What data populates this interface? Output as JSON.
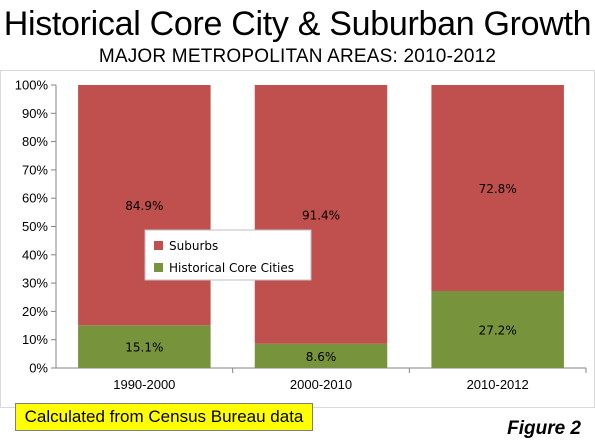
{
  "header": {
    "title": "Historical Core City & Suburban Growth",
    "subtitle": "MAJOR METROPOLITAN AREAS: 2010-2012"
  },
  "footer": {
    "note": "Calculated from Census Bureau data",
    "figure_label": "Figure 2"
  },
  "chart_data": {
    "type": "bar",
    "stacked": true,
    "categories": [
      "1990-2000",
      "2000-2010",
      "2010-2012"
    ],
    "series": [
      {
        "name": "Historical Core Cities",
        "values": [
          15.1,
          8.6,
          27.2
        ],
        "labels": [
          "15.1%",
          "8.6%",
          "27.2%"
        ],
        "color": "#77933c"
      },
      {
        "name": "Suburbs",
        "values": [
          84.9,
          91.4,
          72.8
        ],
        "labels": [
          "84.9%",
          "91.4%",
          "72.8%"
        ],
        "color": "#c0504d"
      }
    ],
    "ylim": [
      0,
      100
    ],
    "yticks": [
      "0%",
      "10%",
      "20%",
      "30%",
      "40%",
      "50%",
      "60%",
      "70%",
      "80%",
      "90%",
      "100%"
    ],
    "legend_order": [
      "Suburbs",
      "Historical Core Cities"
    ],
    "legend_position": "inside-left",
    "grid": false
  }
}
